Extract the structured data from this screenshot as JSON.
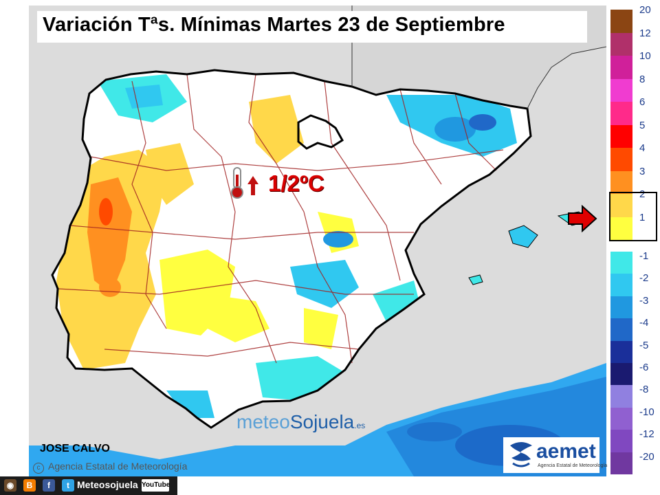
{
  "title": "Variación Tªs. Mínimas Martes 23 de Septiembre",
  "callout": {
    "text": "1/2ºC",
    "icon": "thermometer-up-icon",
    "color": "#d80000"
  },
  "author": "JOSE CALVO",
  "agency_credit": "Agencia Estatal de Meteorología",
  "watermark": {
    "part1": "meteo",
    "part2": "Sojuela",
    "suffix": ".es"
  },
  "logo": {
    "name": "aemet",
    "subtitle": "Agencia Estatal de Meteorología"
  },
  "social": {
    "handle": "Meteosojuela",
    "youtube_label": "YouTube",
    "icons": [
      "instagram-icon",
      "blogger-icon",
      "facebook-icon",
      "twitter-icon"
    ]
  },
  "legend": {
    "positive": [
      {
        "label": "20",
        "color": "#8b4513"
      },
      {
        "label": "12",
        "color": "#b0306a"
      },
      {
        "label": "10",
        "color": "#d0209a"
      },
      {
        "label": "8",
        "color": "#f03cd0"
      },
      {
        "label": "6",
        "color": "#ff2a8a"
      },
      {
        "label": "5",
        "color": "#ff0000"
      },
      {
        "label": "4",
        "color": "#ff4a00"
      },
      {
        "label": "3",
        "color": "#ff9020"
      },
      {
        "label": "2",
        "color": "#ffd84a"
      },
      {
        "label": "1",
        "color": "#ffff40"
      }
    ],
    "negative": [
      {
        "label": "-1",
        "color": "#40e8e8"
      },
      {
        "label": "-2",
        "color": "#30c8f0"
      },
      {
        "label": "-3",
        "color": "#2098e0"
      },
      {
        "label": "-4",
        "color": "#2068c8"
      },
      {
        "label": "-5",
        "color": "#1a2f9a"
      },
      {
        "label": "-6",
        "color": "#1a1a70"
      },
      {
        "label": "-8",
        "color": "#9080e0"
      },
      {
        "label": "-10",
        "color": "#9060d0"
      },
      {
        "label": "-12",
        "color": "#8048c0"
      },
      {
        "label": "-20",
        "color": "#7038a0"
      }
    ],
    "highlighted": "1–2"
  }
}
